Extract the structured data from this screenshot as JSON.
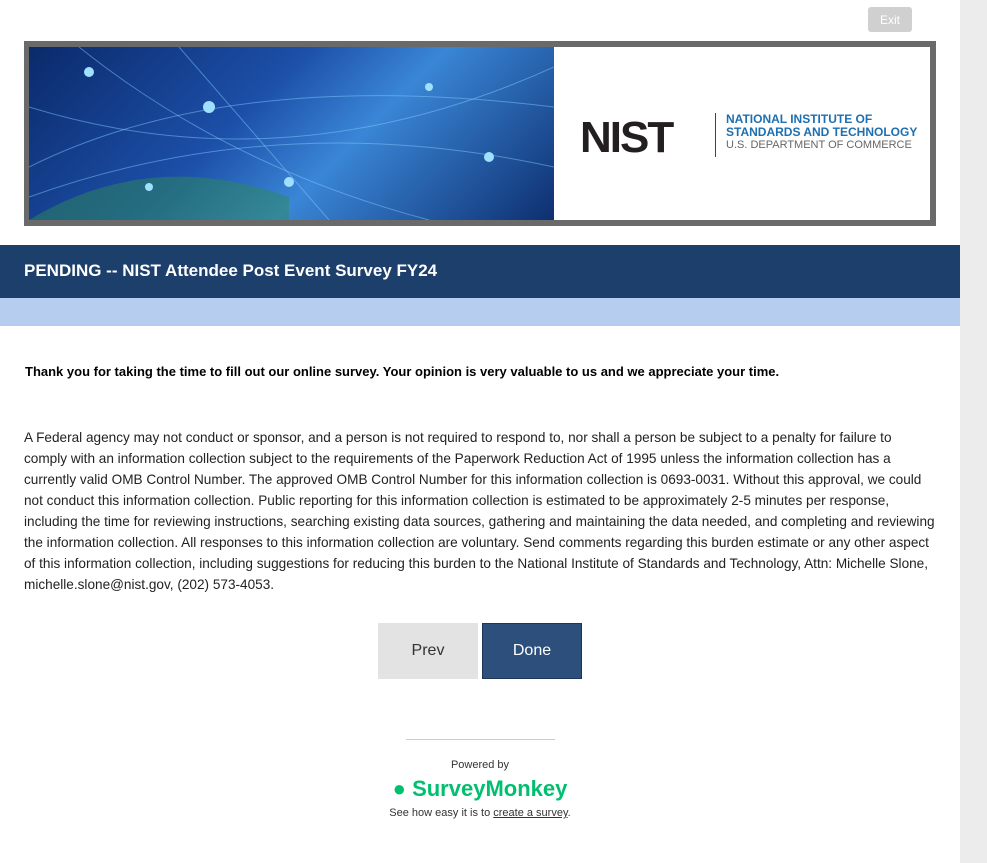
{
  "header": {
    "exit_label": "Exit"
  },
  "banner": {
    "logo_word": "NIST",
    "logo_line1": "NATIONAL INSTITUTE OF",
    "logo_line2": "STANDARDS AND TECHNOLOGY",
    "logo_line3": "U.S. DEPARTMENT OF COMMERCE"
  },
  "survey": {
    "title": "PENDING -- NIST Attendee Post Event Survey FY24",
    "intro": "Thank you for taking the time to fill out our online survey. Your opinion is very valuable to us and we appreciate your time.",
    "disclaimer": "A Federal agency may not conduct or sponsor, and a person is not required to respond to, nor shall a person be subject to a penalty for failure to comply with an information collection subject to the requirements of the Paperwork Reduction Act of 1995 unless the information collection has a currently valid OMB Control Number. The approved OMB Control Number for this information collection is 0693-0031. Without this approval, we could not conduct this information collection. Public reporting for this information collection is estimated to be approximately 2-5 minutes per response, including the time for reviewing instructions, searching existing data sources, gathering and maintaining the data needed, and completing and reviewing the information collection. All responses to this information collection are voluntary. Send comments regarding this burden estimate or any other aspect of this information collection, including suggestions for reducing this burden to the National Institute of Standards and Technology, Attn: Michelle Slone, michelle.slone@nist.gov, (202) 573-4053."
  },
  "nav": {
    "prev_label": "Prev",
    "done_label": "Done"
  },
  "footer": {
    "powered_by": "Powered by",
    "brand": "SurveyMonkey",
    "brand_color": "#00bf6f",
    "tagline": "See how easy it is to ",
    "link": "create a survey",
    "period": "."
  }
}
